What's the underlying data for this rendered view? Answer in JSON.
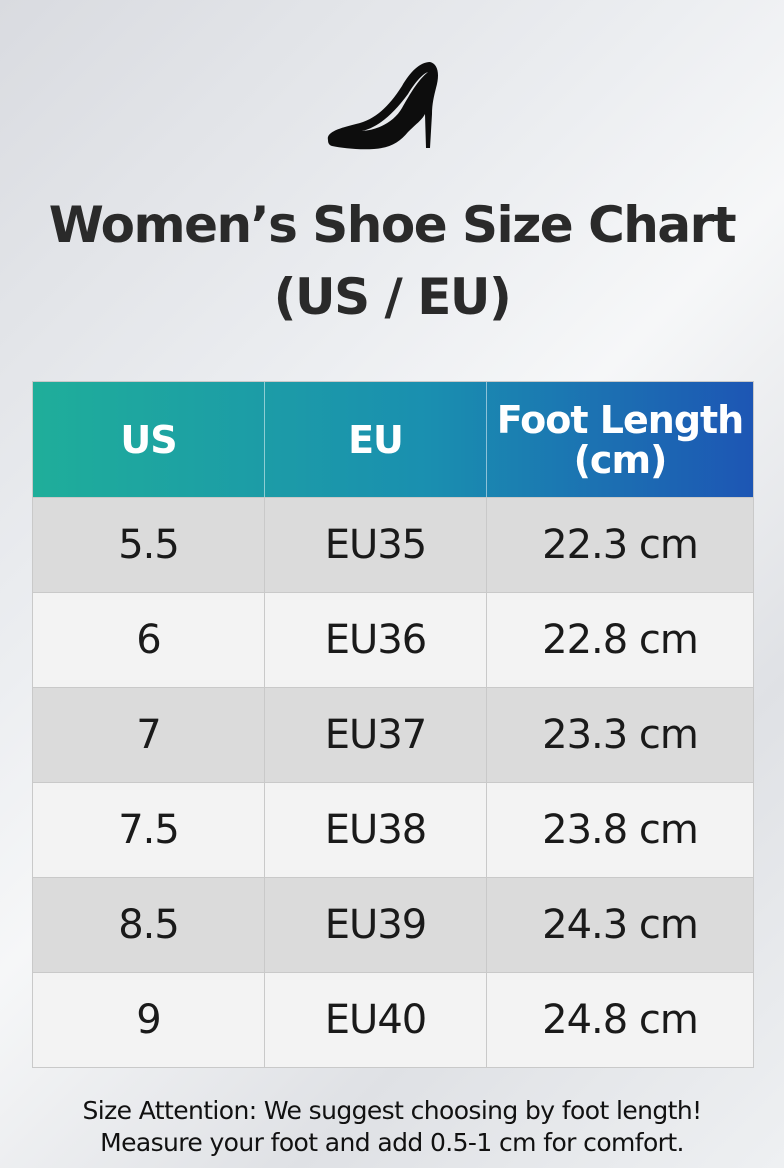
{
  "header": {
    "title": "Women’s Shoe Size Chart",
    "subtitle": "(US / EU)"
  },
  "table": {
    "columns": [
      "US",
      "EU",
      "Foot Length (cm)"
    ],
    "rows": [
      [
        "5.5",
        "EU35",
        "22.3 cm"
      ],
      [
        "6",
        "EU36",
        "22.8 cm"
      ],
      [
        "7",
        "EU37",
        "23.3 cm"
      ],
      [
        "7.5",
        "EU38",
        "23.8 cm"
      ],
      [
        "8.5",
        "EU39",
        "24.3 cm"
      ],
      [
        "9",
        "EU40",
        "24.8 cm"
      ]
    ]
  },
  "footer": {
    "notes": [
      "Size Attention: We suggest choosing by foot length!",
      "Measure your foot and add 0.5-1 cm for comfort."
    ]
  }
}
